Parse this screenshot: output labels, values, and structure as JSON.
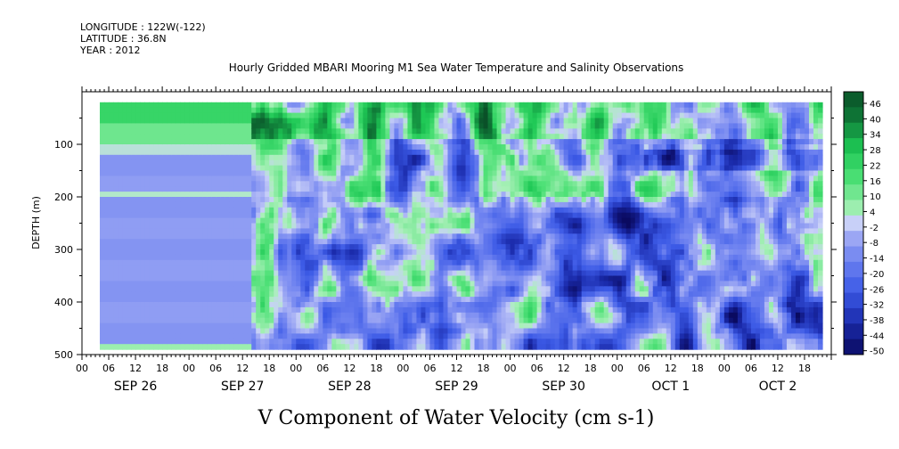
{
  "header": {
    "longitude": "LONGITUDE : 122W(-122)",
    "latitude": "LATITUDE : 36.8N",
    "year": "YEAR : 2012",
    "title": "Hourly Gridded MBARI Mooring M1 Sea Water Temperature and Salinity Observations"
  },
  "chart_data": {
    "type": "heatmap",
    "title": "Hourly Gridded MBARI Mooring M1 Sea Water Temperature and Salinity Observations",
    "xlabel": "V Component of Water Velocity (cm s-1)",
    "ylabel": "DEPTH (m)",
    "x_range_hours": [
      0,
      168
    ],
    "y_range_m": [
      500,
      0
    ],
    "y_ticks": [
      100,
      200,
      300,
      400,
      500
    ],
    "x_hour_ticks": [
      "00",
      "06",
      "12",
      "18",
      "00",
      "06",
      "12",
      "18",
      "00",
      "06",
      "12",
      "18",
      "00",
      "06",
      "12",
      "18",
      "00",
      "06",
      "12",
      "18",
      "00",
      "06",
      "12",
      "18",
      "00",
      "06",
      "12",
      "18"
    ],
    "x_day_labels": [
      {
        "label": "SEP 26",
        "hour": 12
      },
      {
        "label": "SEP 27",
        "hour": 36
      },
      {
        "label": "SEP 28",
        "hour": 60
      },
      {
        "label": "SEP 29",
        "hour": 84
      },
      {
        "label": "SEP 30",
        "hour": 108
      },
      {
        "label": "OCT  1",
        "hour": 132
      },
      {
        "label": "OCT  2",
        "hour": 156
      }
    ],
    "colorbar_levels": [
      "46",
      "40",
      "34",
      "28",
      "22",
      "16",
      "10",
      "4",
      "-2",
      "-8",
      "-14",
      "-20",
      "-26",
      "-32",
      "-38",
      "-44",
      "-50"
    ],
    "colorbar_range": [
      -50,
      50
    ],
    "data_extent_hours": [
      4,
      166
    ],
    "data_extent_depth_m": [
      20,
      485
    ],
    "colors": {
      "green_dark": "#0a5a2a",
      "green": "#2ee06a",
      "green_light": "#a8f0b8",
      "blue_light": "#b8c0f0",
      "blue": "#6a80f0",
      "blue_dark": "#1a2aa0",
      "navy": "#0a0a60"
    }
  }
}
